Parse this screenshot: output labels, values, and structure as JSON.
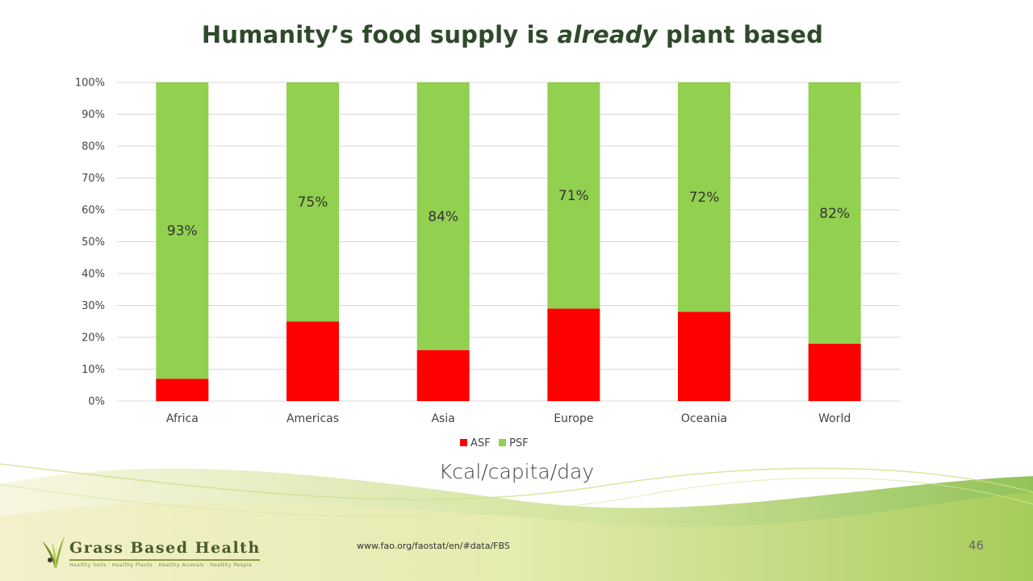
{
  "slide": {
    "title_part1": "Humanity’s food supply is ",
    "title_emph": "already",
    "title_part2": " plant based",
    "subtitle": "Kcal/capita/day",
    "source": "www.fao.org/faostat/en/#data/FBS",
    "slide_number": "46"
  },
  "logo": {
    "name": "Grass Based Health",
    "tagline": "Healthy Soils · Healthy Plants · Healthy Animals · Healthy People"
  },
  "colors": {
    "asf": "#ff0000",
    "psf": "#92d050",
    "title": "#2f4a2b",
    "grid": "#d9d9d9"
  },
  "chart_data": {
    "type": "bar",
    "stacked": true,
    "stack_mode": "percent",
    "categories": [
      "Africa",
      "Americas",
      "Asia",
      "Europe",
      "Oceania",
      "World"
    ],
    "series": [
      {
        "name": "ASF",
        "values": [
          7,
          25,
          16,
          29,
          28,
          18
        ]
      },
      {
        "name": "PSF",
        "values": [
          93,
          75,
          84,
          71,
          72,
          82
        ]
      }
    ],
    "data_labels": [
      "93%",
      "75%",
      "84%",
      "71%",
      "72%",
      "82%"
    ],
    "y_ticks": [
      "0%",
      "10%",
      "20%",
      "30%",
      "40%",
      "50%",
      "60%",
      "70%",
      "80%",
      "90%",
      "100%"
    ],
    "ylim": [
      0,
      100
    ],
    "grid": true,
    "legend_position": "bottom"
  }
}
